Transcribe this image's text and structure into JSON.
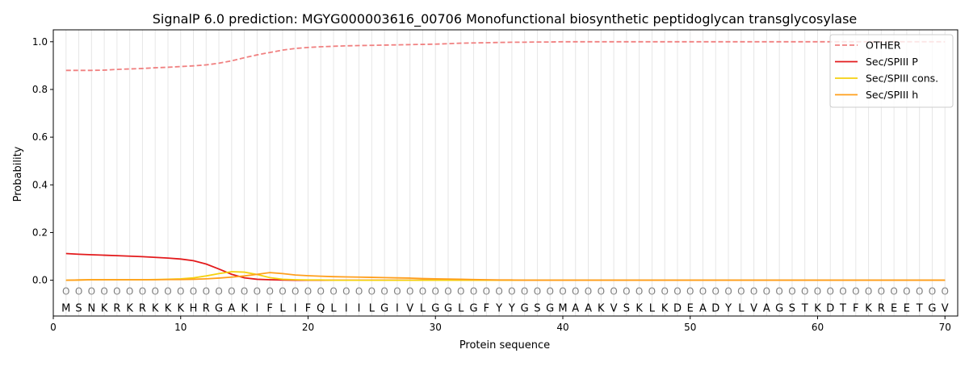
{
  "chart_data": {
    "type": "line",
    "title": "SignalP 6.0 prediction: MGYG000003616_00706 Monofunctional biosynthetic peptidoglycan transglycosylase",
    "xlabel": "Protein sequence",
    "ylabel": "Probability",
    "xlim": [
      0,
      71
    ],
    "ylim": [
      -0.15,
      1.05
    ],
    "x_ticks": [
      0,
      10,
      20,
      30,
      40,
      50,
      60,
      70
    ],
    "y_ticks": [
      0.0,
      0.2,
      0.4,
      0.6,
      0.8,
      1.0
    ],
    "x_tick_labels": [
      "0",
      "10",
      "20",
      "30",
      "40",
      "50",
      "60",
      "70"
    ],
    "y_tick_labels": [
      "0.0",
      "0.2",
      "0.4",
      "0.6",
      "0.8",
      "1.0"
    ],
    "grid": "vertical lines at each residue",
    "legend_position": "top-right",
    "sequence": [
      "M",
      "S",
      "N",
      "K",
      "R",
      "K",
      "R",
      "K",
      "K",
      "K",
      "H",
      "R",
      "G",
      "A",
      "K",
      "I",
      "F",
      "L",
      "I",
      "F",
      "Q",
      "L",
      "I",
      "I",
      "L",
      "G",
      "I",
      "V",
      "L",
      "G",
      "G",
      "L",
      "G",
      "F",
      "Y",
      "Y",
      "G",
      "S",
      "G",
      "M",
      "A",
      "A",
      "K",
      "V",
      "S",
      "K",
      "L",
      "K",
      "D",
      "E",
      "A",
      "D",
      "Y",
      "L",
      "V",
      "A",
      "G",
      "S",
      "T",
      "K",
      "D",
      "T",
      "F",
      "K",
      "R",
      "E",
      "E",
      "T",
      "G",
      "V"
    ],
    "region_labels": [
      "O",
      "O",
      "O",
      "O",
      "O",
      "O",
      "O",
      "O",
      "O",
      "O",
      "O",
      "O",
      "O",
      "O",
      "O",
      "O",
      "O",
      "O",
      "O",
      "O",
      "O",
      "O",
      "O",
      "O",
      "O",
      "O",
      "O",
      "O",
      "O",
      "O",
      "O",
      "O",
      "O",
      "O",
      "O",
      "O",
      "O",
      "O",
      "O",
      "O",
      "O",
      "O",
      "O",
      "O",
      "O",
      "O",
      "O",
      "O",
      "O",
      "O",
      "O",
      "O",
      "O",
      "O",
      "O",
      "O",
      "O",
      "O",
      "O",
      "O",
      "O",
      "O",
      "O",
      "O",
      "O",
      "O",
      "O",
      "O",
      "O",
      "O"
    ],
    "series": [
      {
        "name": "OTHER",
        "color": "#f08080",
        "dash": "dashed",
        "values": [
          0.88,
          0.88,
          0.88,
          0.881,
          0.884,
          0.886,
          0.888,
          0.891,
          0.893,
          0.896,
          0.899,
          0.903,
          0.91,
          0.92,
          0.933,
          0.945,
          0.955,
          0.965,
          0.972,
          0.976,
          0.979,
          0.981,
          0.983,
          0.984,
          0.985,
          0.986,
          0.987,
          0.988,
          0.989,
          0.99,
          0.992,
          0.994,
          0.995,
          0.996,
          0.997,
          0.998,
          0.998,
          0.999,
          0.999,
          1.0,
          1.0,
          1.0,
          1.0,
          1.0,
          1.0,
          1.0,
          1.0,
          1.0,
          1.0,
          1.0,
          1.0,
          1.0,
          1.0,
          1.0,
          1.0,
          1.0,
          1.0,
          1.0,
          1.0,
          1.0,
          1.0,
          1.0,
          1.0,
          1.0,
          1.0,
          1.0,
          1.0,
          1.0,
          1.0,
          1.0
        ]
      },
      {
        "name": "Sec/SPIII P",
        "color": "#e31a1c",
        "dash": "solid",
        "values": [
          0.112,
          0.109,
          0.107,
          0.105,
          0.103,
          0.101,
          0.099,
          0.096,
          0.093,
          0.089,
          0.082,
          0.068,
          0.047,
          0.025,
          0.01,
          0.004,
          0.002,
          0.001,
          0.0,
          0.0,
          0.0,
          0.0,
          0.0,
          0.0,
          0.0,
          0.0,
          0.0,
          0.0,
          0.0,
          0.0,
          0.0,
          0.0,
          0.0,
          0.0,
          0.0,
          0.0,
          0.0,
          0.0,
          0.0,
          0.0,
          0.0,
          0.0,
          0.0,
          0.0,
          0.0,
          0.0,
          0.0,
          0.0,
          0.0,
          0.0,
          0.0,
          0.0,
          0.0,
          0.0,
          0.0,
          0.0,
          0.0,
          0.0,
          0.0,
          0.0,
          0.0,
          0.0,
          0.0,
          0.0,
          0.0,
          0.0,
          0.0,
          0.0,
          0.0,
          0.0
        ]
      },
      {
        "name": "Sec/SPIII cons.",
        "color": "#f5d10f",
        "dash": "solid",
        "values": [
          0.0,
          0.001,
          0.002,
          0.002,
          0.002,
          0.002,
          0.002,
          0.003,
          0.004,
          0.006,
          0.01,
          0.018,
          0.028,
          0.036,
          0.034,
          0.024,
          0.011,
          0.004,
          0.002,
          0.001,
          0.001,
          0.0,
          0.0,
          0.0,
          0.0,
          0.0,
          0.0,
          0.0,
          0.0,
          0.0,
          0.0,
          0.0,
          0.0,
          0.0,
          0.0,
          0.0,
          0.0,
          0.0,
          0.0,
          0.0,
          0.0,
          0.0,
          0.0,
          0.0,
          0.0,
          0.0,
          0.0,
          0.0,
          0.0,
          0.0,
          0.0,
          0.0,
          0.0,
          0.0,
          0.0,
          0.0,
          0.0,
          0.0,
          0.0,
          0.0,
          0.0,
          0.0,
          0.0,
          0.0,
          0.0,
          0.0,
          0.0,
          0.0,
          0.0,
          0.0
        ]
      },
      {
        "name": "Sec/SPIII h",
        "color": "#ff9f1c",
        "dash": "solid",
        "values": [
          0.0,
          0.001,
          0.002,
          0.002,
          0.002,
          0.002,
          0.002,
          0.002,
          0.003,
          0.003,
          0.004,
          0.006,
          0.009,
          0.013,
          0.018,
          0.025,
          0.032,
          0.028,
          0.022,
          0.019,
          0.017,
          0.015,
          0.014,
          0.013,
          0.012,
          0.011,
          0.01,
          0.009,
          0.007,
          0.006,
          0.005,
          0.004,
          0.003,
          0.002,
          0.001,
          0.001,
          0.0,
          0.0,
          0.0,
          0.0,
          0.0,
          0.0,
          0.0,
          0.0,
          0.0,
          0.0,
          0.0,
          0.0,
          0.0,
          0.0,
          0.0,
          0.0,
          0.0,
          0.0,
          0.0,
          0.0,
          0.0,
          0.0,
          0.0,
          0.0,
          0.0,
          0.0,
          0.0,
          0.0,
          0.0,
          0.0,
          0.0,
          0.0,
          0.0,
          0.0
        ]
      }
    ]
  }
}
